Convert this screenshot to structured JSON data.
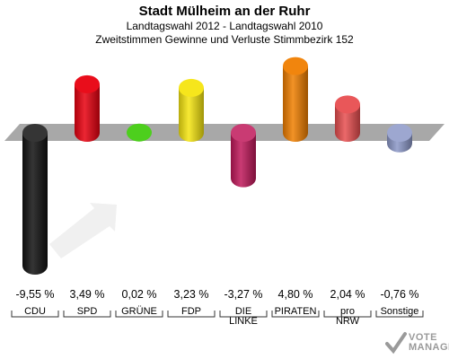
{
  "header": {
    "title": "Stadt Mülheim an der Ruhr",
    "subtitle1": "Landtagswahl 2012 - Landtagswahl 2010",
    "subtitle2": "Zweitstimmen Gewinne und Verluste Stimmbezirk 152"
  },
  "chart_data": {
    "type": "bar",
    "title": "Stadt Mülheim an der Ruhr",
    "subtitle": "Landtagswahl 2012 - Landtagswahl 2010 / Zweitstimmen Gewinne und Verluste Stimmbezirk 152",
    "categories": [
      "CDU",
      "SPD",
      "GRÜNE",
      "FDP",
      "DIE LINKE",
      "PIRATEN",
      "pro NRW",
      "Sonstige"
    ],
    "values": [
      -9.55,
      3.49,
      0.02,
      3.23,
      -3.27,
      4.8,
      2.04,
      -0.76
    ],
    "value_labels": [
      "-9,55 %",
      "3,49 %",
      "0,02 %",
      "3,23 %",
      "-3,27 %",
      "4,80 %",
      "2,04 %",
      "-0,76 %"
    ],
    "colors": [
      "#111111",
      "#e8000f",
      "#44cc11",
      "#f5e510",
      "#c0185a",
      "#f07f00",
      "#e84e50",
      "#8c98c8"
    ],
    "label_lines": [
      [
        "CDU"
      ],
      [
        "SPD"
      ],
      [
        "GRÜNE"
      ],
      [
        "FDP"
      ],
      [
        "DIE",
        "LINKE"
      ],
      [
        "PIRATEN"
      ],
      [
        "pro",
        "NRW"
      ],
      [
        "Sonstige"
      ]
    ],
    "grid": false,
    "legend": "none"
  },
  "watermark": {
    "line1": "VOTE",
    "line2": "MANAGER"
  }
}
